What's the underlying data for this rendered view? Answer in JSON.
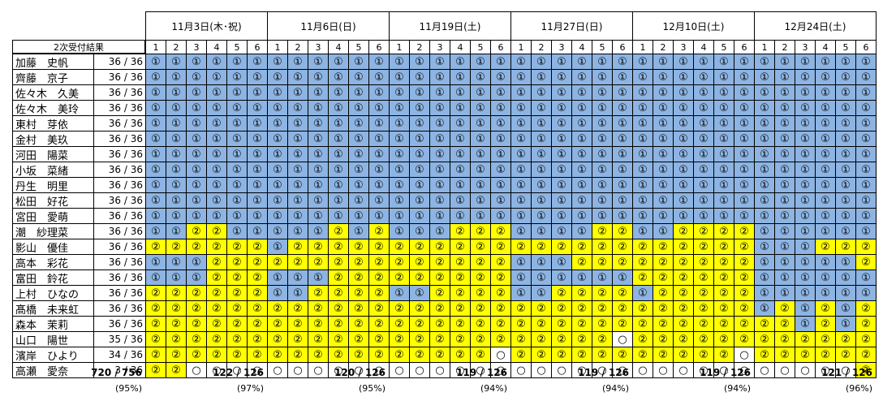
{
  "section_label": "2次受付結果",
  "dates": [
    "11月3日(木･祝)",
    "11月6日(日)",
    "11月19日(土)",
    "11月27日(日)",
    "12月10日(土)",
    "12月24日(土)"
  ],
  "slot_numbers": [
    "1",
    "2",
    "3",
    "4",
    "5",
    "6"
  ],
  "symbols": {
    "1": "①",
    "2": "②",
    "0": "○"
  },
  "colors": {
    "group1": "#8DB4E2",
    "group2": "#FFFF00",
    "empty": "#FFFFFF"
  },
  "members": [
    {
      "name": "加藤　史帆",
      "count": "36 / 36",
      "marks": "111111111111111111111111111111111111"
    },
    {
      "name": "齊藤　京子",
      "count": "36 / 36",
      "marks": "111111111111111111111111111111111111"
    },
    {
      "name": "佐々木　久美",
      "count": "36 / 36",
      "marks": "111111111111111111111111111111111111"
    },
    {
      "name": "佐々木　美玲",
      "count": "36 / 36",
      "marks": "111111111111111111111111111111111111"
    },
    {
      "name": "東村　芽依",
      "count": "36 / 36",
      "marks": "111111111111111111111111111111111111"
    },
    {
      "name": "金村　美玖",
      "count": "36 / 36",
      "marks": "111111111111111111111111111111111111"
    },
    {
      "name": "河田　陽菜",
      "count": "36 / 36",
      "marks": "111111111111111111111111111111111111"
    },
    {
      "name": "小坂　菜緒",
      "count": "36 / 36",
      "marks": "111111111111111111111111111111111111"
    },
    {
      "name": "丹生　明里",
      "count": "36 / 36",
      "marks": "111111111111111111111111111111111111"
    },
    {
      "name": "松田　好花",
      "count": "36 / 36",
      "marks": "111111111111111111111111111111111111"
    },
    {
      "name": "宮田　愛萌",
      "count": "36 / 36",
      "marks": "111111111111111111111111111111111111"
    },
    {
      "name": "潮　紗理菜",
      "count": "36 / 36",
      "marks": "112211111212111222111122112222111111"
    },
    {
      "name": "影山　優佳",
      "count": "36 / 36",
      "marks": "222222122222222222222222222222111222"
    },
    {
      "name": "高本　彩花",
      "count": "36 / 36",
      "marks": "111222222222222222111222222222111112"
    },
    {
      "name": "富田　鈴花",
      "count": "36 / 36",
      "marks": "111222111222222222111111222222111111"
    },
    {
      "name": "上村　ひなの",
      "count": "36 / 36",
      "marks": "222222112222112222112222122222111111"
    },
    {
      "name": "髙橋　未来虹",
      "count": "36 / 36",
      "marks": "222222222222222222222222222222121212"
    },
    {
      "name": "森本　茉莉",
      "count": "36 / 36",
      "marks": "222222222222222222222222222222221212"
    },
    {
      "name": "山口　陽世",
      "count": "35 / 36",
      "marks": "222222222222222222222220222222222222"
    },
    {
      "name": "濱岸　ひより",
      "count": "34 / 36",
      "marks": "222222222222222220222222222220222222"
    },
    {
      "name": "高瀬　愛奈",
      "count": "3 / 36",
      "marks": "220000000000000000000000000000000002"
    }
  ],
  "grand_total": "720 / 756",
  "grand_pct": "(95%)",
  "date_totals": [
    "122 / 126",
    "120 / 126",
    "119 / 126",
    "119 / 126",
    "119 / 126",
    "121 / 126"
  ],
  "date_pcts": [
    "(97%)",
    "(95%)",
    "(94%)",
    "(94%)",
    "(94%)",
    "(96%)"
  ]
}
